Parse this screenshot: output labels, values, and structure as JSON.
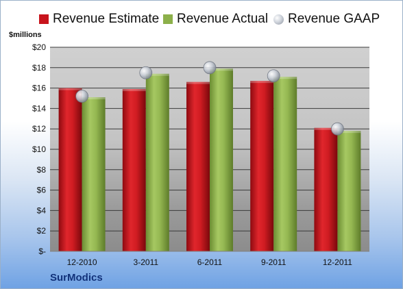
{
  "unit_label": "$millions",
  "company": "SurModics",
  "colors": {
    "estimate": "#c8141c",
    "actual": "#8cb04a",
    "gaap": "#b9bec6"
  },
  "chart_data": {
    "type": "bar",
    "title": "",
    "xlabel": "",
    "ylabel": "$millions",
    "ylim": [
      0,
      20
    ],
    "yticks": [
      0,
      2,
      4,
      6,
      8,
      10,
      12,
      14,
      16,
      18,
      20
    ],
    "ytick_labels": [
      "$-",
      "$2",
      "$4",
      "$6",
      "$8",
      "$10",
      "$12",
      "$14",
      "$16",
      "$18",
      "$20"
    ],
    "categories": [
      "12-2010",
      "3-2011",
      "6-2011",
      "9-2011",
      "12-2011"
    ],
    "legend": "top",
    "grid": true,
    "series": [
      {
        "name": "Revenue Estimate",
        "type": "bar",
        "values": [
          16.0,
          15.9,
          16.6,
          16.7,
          12.1
        ]
      },
      {
        "name": "Revenue Actual",
        "type": "bar",
        "values": [
          15.1,
          17.4,
          17.9,
          17.1,
          11.8
        ]
      },
      {
        "name": "Revenue GAAP",
        "type": "marker",
        "values": [
          15.2,
          17.5,
          18.0,
          17.2,
          12.0
        ]
      }
    ]
  }
}
